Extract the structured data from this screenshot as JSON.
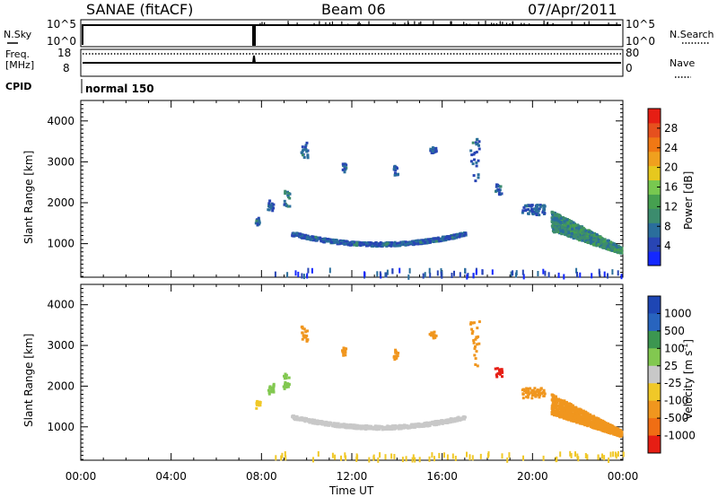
{
  "header": {
    "radar": "SANAE (fitACF)",
    "beam": "Beam 06",
    "date": "07/Apr/2011"
  },
  "top_panels": {
    "nsky_label": "N.Sky",
    "nsearch_label": "N.Search",
    "freq_label": "Freq.",
    "freq_unit": "[MHz]",
    "nave_label": "Nave",
    "cpid_label": "CPID",
    "cpid_value": "normal 150",
    "noise_left_ticks": [
      "10^5",
      "10^0"
    ],
    "noise_right_ticks": [
      "10^5",
      "10^0"
    ],
    "freq_left_ticks": [
      "18",
      "8"
    ],
    "freq_right_ticks": [
      "80",
      "0"
    ]
  },
  "chart_data": [
    {
      "type": "heatmap",
      "name": "power",
      "ylabel": "Slant Range [km]",
      "ylim": [
        180,
        4500
      ],
      "yticks": [
        1000,
        2000,
        3000,
        4000
      ],
      "xlim": [
        0,
        24
      ],
      "colorbar": {
        "label": "Power [dB]",
        "range": [
          0,
          32
        ],
        "ticks": [
          "4",
          "8",
          "12",
          "16",
          "20",
          "24",
          "28"
        ],
        "colors": [
          "#1428ff",
          "#2845b4",
          "#2a6e9c",
          "#3c8c6e",
          "#46a050",
          "#78c850",
          "#e6c81e",
          "#f0a01e",
          "#f07814",
          "#e6501e",
          "#e61e14"
        ]
      },
      "clusters": [
        {
          "t": [
            7.7,
            7.9
          ],
          "r": [
            1450,
            1650
          ],
          "value": 6
        },
        {
          "t": [
            8.2,
            8.5
          ],
          "r": [
            1800,
            2050
          ],
          "value": 6
        },
        {
          "t": [
            8.9,
            9.2
          ],
          "r": [
            1900,
            2300
          ],
          "value": 8
        },
        {
          "t": [
            9.3,
            17.0
          ],
          "r": [
            880,
            1250
          ],
          "value": 6,
          "arc": true
        },
        {
          "t": [
            9.7,
            10.0
          ],
          "r": [
            3050,
            3500
          ],
          "value": 6
        },
        {
          "t": [
            11.5,
            11.7
          ],
          "r": [
            2750,
            2950
          ],
          "value": 6
        },
        {
          "t": [
            13.8,
            14.0
          ],
          "r": [
            2650,
            2900
          ],
          "value": 6
        },
        {
          "t": [
            15.4,
            15.7
          ],
          "r": [
            3150,
            3350
          ],
          "value": 6
        },
        {
          "t": [
            17.2,
            17.6
          ],
          "r": [
            2450,
            3600
          ],
          "value": 6
        },
        {
          "t": [
            18.3,
            18.6
          ],
          "r": [
            2200,
            2450
          ],
          "value": 6
        },
        {
          "t": [
            19.5,
            20.5
          ],
          "r": [
            1700,
            1950
          ],
          "value": 6
        },
        {
          "t": [
            20.8,
            23.9
          ],
          "r": [
            700,
            1800
          ],
          "value": 10,
          "dense": true
        },
        {
          "t": [
            8.5,
            24.0
          ],
          "r": [
            180,
            350
          ],
          "value": 4,
          "sparse": true
        }
      ]
    },
    {
      "type": "heatmap",
      "name": "velocity",
      "ylabel": "Slant Range [km]",
      "ylim": [
        180,
        4500
      ],
      "yticks": [
        1000,
        2000,
        3000,
        4000
      ],
      "xlim": [
        0,
        24
      ],
      "xticks": [
        "00:00",
        "04:00",
        "08:00",
        "12:00",
        "16:00",
        "20:00",
        "00:00"
      ],
      "xlabel": "Time UT",
      "colorbar": {
        "label": "Velocity [m s",
        "label_sup": "-1",
        "label_end": "]",
        "ticks": [
          "1000",
          "500",
          "100",
          "25",
          "-25",
          "-100",
          "-500",
          "-1000"
        ],
        "colors": [
          "#1e46b4",
          "#2864be",
          "#3c9650",
          "#82c850",
          "#c8c8c8",
          "#f0c828",
          "#f0961e",
          "#f06e14",
          "#e61e14"
        ]
      },
      "clusters": [
        {
          "t": [
            7.7,
            7.9
          ],
          "r": [
            1450,
            1650
          ],
          "value": "yellow"
        },
        {
          "t": [
            8.2,
            8.5
          ],
          "r": [
            1800,
            2050
          ],
          "value": "green"
        },
        {
          "t": [
            8.9,
            9.2
          ],
          "r": [
            1900,
            2300
          ],
          "value": "green"
        },
        {
          "t": [
            9.3,
            17.0
          ],
          "r": [
            880,
            1250
          ],
          "value": "gray",
          "arc": true
        },
        {
          "t": [
            9.7,
            10.0
          ],
          "r": [
            3050,
            3500
          ],
          "value": "orange"
        },
        {
          "t": [
            11.5,
            11.7
          ],
          "r": [
            2750,
            2950
          ],
          "value": "orange"
        },
        {
          "t": [
            13.8,
            14.0
          ],
          "r": [
            2650,
            2900
          ],
          "value": "orange"
        },
        {
          "t": [
            15.4,
            15.7
          ],
          "r": [
            3150,
            3350
          ],
          "value": "orange"
        },
        {
          "t": [
            17.2,
            17.6
          ],
          "r": [
            2450,
            3600
          ],
          "value": "orange"
        },
        {
          "t": [
            18.3,
            18.6
          ],
          "r": [
            2200,
            2450
          ],
          "value": "red"
        },
        {
          "t": [
            19.5,
            20.5
          ],
          "r": [
            1700,
            1950
          ],
          "value": "orange"
        },
        {
          "t": [
            20.8,
            23.9
          ],
          "r": [
            700,
            1800
          ],
          "value": "orange",
          "dense": true
        },
        {
          "t": [
            8.5,
            24.0
          ],
          "r": [
            180,
            350
          ],
          "value": "yellow",
          "sparse": true
        }
      ]
    }
  ]
}
